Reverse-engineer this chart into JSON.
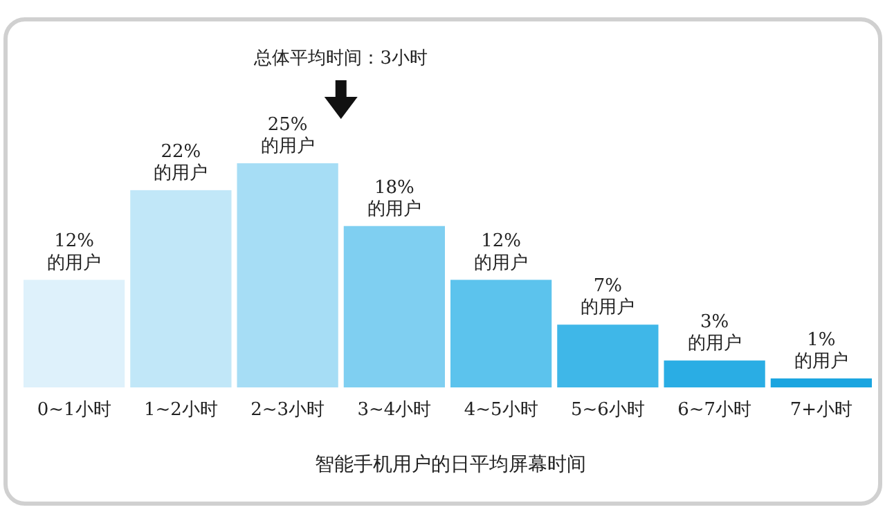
{
  "chart_data": {
    "type": "bar",
    "xlabel": "智能手机用户的日平均屏幕时间",
    "categories": [
      "0~1小时",
      "1~2小时",
      "2~3小时",
      "3~4小时",
      "4~5小时",
      "5~6小时",
      "6~7小时",
      "7+小时"
    ],
    "values": [
      12,
      22,
      25,
      18,
      12,
      7,
      3,
      1
    ],
    "colors": [
      "#def1fb",
      "#c1e7f8",
      "#a6ddf5",
      "#7fcff1",
      "#5cc3ed",
      "#3fb7e8",
      "#2aade4",
      "#1ba5e0"
    ],
    "value_labels": [
      "12%\n的用户",
      "22%\n的用户",
      "25%\n的用户",
      "18%\n的用户",
      "12%\n的用户",
      "7%\n的用户",
      "3%\n的用户",
      "1%\n的用户"
    ],
    "annotations": [
      "总体平均时间：3小时"
    ]
  }
}
